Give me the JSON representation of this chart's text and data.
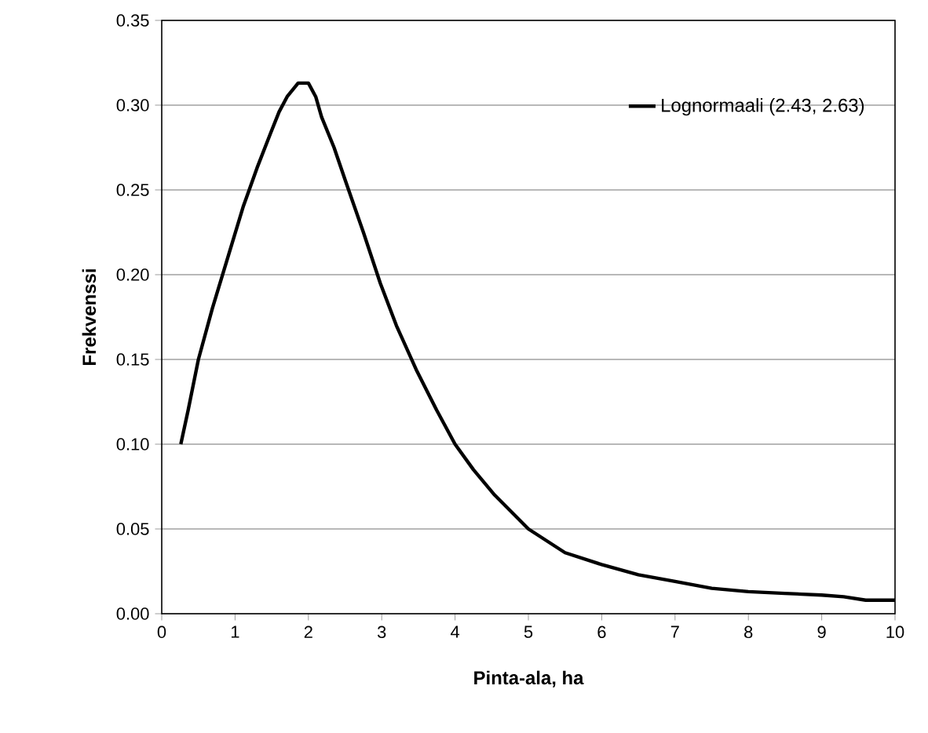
{
  "chart_data": {
    "type": "line",
    "xlabel": "Pinta-ala, ha",
    "ylabel": "Frekvenssi",
    "xlim": [
      0,
      10
    ],
    "ylim": [
      0,
      0.35
    ],
    "xticks": [
      0,
      1,
      2,
      3,
      4,
      5,
      6,
      7,
      8,
      9,
      10
    ],
    "yticks": [
      {
        "value": 0,
        "label": "0.00"
      },
      {
        "value": 0.05,
        "label": "0.05"
      },
      {
        "value": 0.1,
        "label": "0.10"
      },
      {
        "value": 0.15,
        "label": "0.15"
      },
      {
        "value": 0.2,
        "label": "0.20"
      },
      {
        "value": 0.25,
        "label": "0.25"
      },
      {
        "value": 0.3,
        "label": "0.30"
      },
      {
        "value": 0.35,
        "label": "0.35"
      }
    ],
    "grid": "y",
    "legend": "top right",
    "marker": "none",
    "line_style": "solid",
    "series": [
      {
        "name": "Lognormaali (2.43, 2.63)",
        "color": "#000000",
        "x": [
          0.26,
          0.36,
          0.5,
          0.69,
          0.9,
          1.11,
          1.3,
          1.48,
          1.6,
          1.71,
          1.86,
          2.0,
          2.1,
          2.18,
          2.35,
          2.5,
          2.75,
          2.98,
          3.2,
          3.47,
          3.75,
          4.0,
          4.25,
          4.54,
          5.0,
          5.5,
          6.0,
          6.5,
          7.0,
          7.5,
          8.0,
          8.5,
          9.0,
          9.3,
          9.6,
          10.0
        ],
        "values": [
          0.1,
          0.12,
          0.15,
          0.18,
          0.21,
          0.24,
          0.263,
          0.283,
          0.296,
          0.305,
          0.313,
          0.313,
          0.305,
          0.293,
          0.275,
          0.256,
          0.225,
          0.195,
          0.17,
          0.144,
          0.12,
          0.1,
          0.085,
          0.07,
          0.05,
          0.036,
          0.029,
          0.023,
          0.019,
          0.015,
          0.013,
          0.012,
          0.011,
          0.01,
          0.008,
          0.008
        ]
      }
    ]
  }
}
